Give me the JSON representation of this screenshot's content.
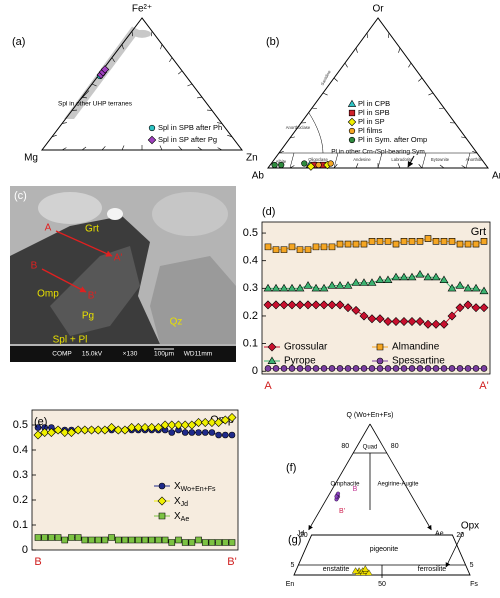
{
  "chart_data": [
    {
      "type": "ternary",
      "panel": "(a)",
      "vertices": [
        "Fe²⁺",
        "Mg",
        "Zn"
      ],
      "ticks": [
        0.1,
        0.2,
        0.3,
        0.4,
        0.5,
        0.6,
        0.7,
        0.8,
        0.9
      ],
      "annotations": [
        "Spl in other UHP terranes"
      ],
      "legend": "lower right",
      "series": [
        {
          "name": "Spl in SPB after Ph",
          "color": "#2ec4c4",
          "marker": "circle",
          "values": [
            [
              0.56,
              0.43,
              0.01
            ],
            [
              0.58,
              0.41,
              0.01
            ],
            [
              0.6,
              0.39,
              0.01
            ]
          ]
        },
        {
          "name": "Spl in SP after Pg",
          "color": "#a040c0",
          "marker": "diamond",
          "values": [
            [
              0.57,
              0.42,
              0.01
            ],
            [
              0.59,
              0.4,
              0.01
            ],
            [
              0.61,
              0.38,
              0.01
            ]
          ]
        }
      ]
    },
    {
      "type": "ternary",
      "panel": "(b)",
      "vertices": [
        "Or",
        "Ab",
        "An"
      ],
      "ticks": [
        0.1,
        0.2,
        0.3,
        0.4,
        0.5,
        0.6,
        0.7,
        0.8,
        0.9
      ],
      "fields": [
        "Sanidine",
        "Anorthoclase",
        "Albite",
        "Oligoclase",
        "Andesine",
        "Labradorite",
        "Bytownite",
        "Anorthite"
      ],
      "annotations": [
        "Pl in other Crn-/Spl-bearing Sym"
      ],
      "legend": "center",
      "series": [
        {
          "name": "Pl in CPB",
          "color": "#2ec4c4",
          "marker": "triangle",
          "values": [
            [
              0.02,
              0.8,
              0.18
            ]
          ]
        },
        {
          "name": "Pl in SPB",
          "color": "#d0202a",
          "marker": "square",
          "values": [
            [
              0.02,
              0.78,
              0.2
            ],
            [
              0.02,
              0.74,
              0.24
            ]
          ]
        },
        {
          "name": "Pl in SP",
          "color": "#f0f000",
          "marker": "diamond",
          "values": [
            [
              0.01,
              0.8,
              0.19
            ],
            [
              0.02,
              0.72,
              0.26
            ]
          ]
        },
        {
          "name": "Pl films",
          "color": "#f5a623",
          "marker": "circle",
          "values": [
            [
              0.02,
              0.76,
              0.22
            ],
            [
              0.03,
              0.7,
              0.27
            ]
          ]
        },
        {
          "name": "Pl in Sym. after Omp",
          "color": "#2e8b3e",
          "marker": "circle",
          "values": [
            [
              0.02,
              0.96,
              0.02
            ],
            [
              0.02,
              0.93,
              0.05
            ],
            [
              0.03,
              0.82,
              0.15
            ]
          ]
        }
      ]
    },
    {
      "type": "image",
      "panel": "(c)",
      "labels": [
        "A",
        "Grt",
        "B",
        "Omp",
        "B'",
        "A'",
        "Pg",
        "Qz",
        "Spl + Pl"
      ],
      "scale_bar": [
        "COMP",
        "15.0kV",
        "×130",
        "100μm",
        "WD11mm"
      ]
    },
    {
      "type": "line",
      "panel": "(d)",
      "title": "Grt",
      "categories": [
        "A",
        null,
        null,
        null,
        null,
        null,
        null,
        null,
        null,
        null,
        null,
        null,
        null,
        null,
        null,
        null,
        null,
        null,
        null,
        null,
        null,
        null,
        null,
        null,
        null,
        null,
        null,
        "A'"
      ],
      "ylim": [
        -0.01,
        0.54
      ],
      "yticks": [
        0,
        0.1,
        0.2,
        0.3,
        0.4,
        0.5
      ],
      "series": [
        {
          "name": "Grossular",
          "color": "#c8102e",
          "marker": "diamond",
          "values": [
            0.24,
            0.24,
            0.24,
            0.24,
            0.24,
            0.24,
            0.24,
            0.24,
            0.24,
            0.24,
            0.23,
            0.22,
            0.2,
            0.19,
            0.19,
            0.18,
            0.18,
            0.18,
            0.18,
            0.18,
            0.17,
            0.17,
            0.17,
            0.2,
            0.23,
            0.24,
            0.23,
            0.23
          ]
        },
        {
          "name": "Almandine",
          "color": "#f5a623",
          "marker": "square",
          "values": [
            0.45,
            0.44,
            0.44,
            0.45,
            0.44,
            0.44,
            0.45,
            0.45,
            0.45,
            0.46,
            0.46,
            0.46,
            0.46,
            0.47,
            0.47,
            0.47,
            0.46,
            0.47,
            0.47,
            0.47,
            0.48,
            0.47,
            0.47,
            0.47,
            0.46,
            0.46,
            0.46,
            0.47
          ]
        },
        {
          "name": "Pyrope",
          "color": "#3cb371",
          "marker": "triangle",
          "values": [
            0.3,
            0.3,
            0.3,
            0.3,
            0.3,
            0.31,
            0.3,
            0.3,
            0.31,
            0.31,
            0.31,
            0.32,
            0.32,
            0.32,
            0.33,
            0.33,
            0.34,
            0.34,
            0.34,
            0.35,
            0.34,
            0.34,
            0.33,
            0.3,
            0.31,
            0.3,
            0.3,
            0.29
          ]
        },
        {
          "name": "Spessartine",
          "color": "#7b3fa0",
          "marker": "circle",
          "values": [
            0.01,
            0.01,
            0.01,
            0.01,
            0.01,
            0.01,
            0.01,
            0.01,
            0.01,
            0.01,
            0.01,
            0.01,
            0.01,
            0.01,
            0.01,
            0.01,
            0.01,
            0.01,
            0.01,
            0.01,
            0.01,
            0.01,
            0.01,
            0.01,
            0.01,
            0.01,
            0.01,
            0.01
          ]
        }
      ]
    },
    {
      "type": "line",
      "panel": "(e)",
      "title": "Omp",
      "categories": [
        "B",
        null,
        null,
        null,
        null,
        null,
        null,
        null,
        null,
        null,
        null,
        null,
        null,
        null,
        null,
        null,
        null,
        null,
        null,
        null,
        null,
        null,
        null,
        null,
        null,
        null,
        null,
        null,
        null,
        "B'"
      ],
      "ylim": [
        0,
        0.56
      ],
      "yticks": [
        0,
        0.1,
        0.2,
        0.3,
        0.4,
        0.5
      ],
      "series": [
        {
          "name": "XWo+En+Fs",
          "color": "#1f2a8a",
          "marker": "circle",
          "values": [
            0.49,
            0.49,
            0.49,
            0.48,
            0.48,
            0.48,
            0.48,
            0.48,
            0.48,
            0.48,
            0.48,
            0.48,
            0.48,
            0.48,
            0.48,
            0.48,
            0.48,
            0.48,
            0.48,
            0.48,
            0.47,
            0.48,
            0.47,
            0.47,
            0.47,
            0.47,
            0.47,
            0.46,
            0.46,
            0.46
          ]
        },
        {
          "name": "XJd",
          "color": "#f0f000",
          "marker": "diamond",
          "values": [
            0.46,
            0.47,
            0.47,
            0.48,
            0.47,
            0.47,
            0.48,
            0.48,
            0.48,
            0.48,
            0.48,
            0.49,
            0.48,
            0.48,
            0.49,
            0.49,
            0.49,
            0.49,
            0.49,
            0.5,
            0.5,
            0.5,
            0.5,
            0.5,
            0.51,
            0.51,
            0.51,
            0.51,
            0.52,
            0.53
          ]
        },
        {
          "name": "XAe",
          "color": "#7cc242",
          "marker": "square",
          "values": [
            0.05,
            0.05,
            0.05,
            0.05,
            0.04,
            0.05,
            0.05,
            0.04,
            0.04,
            0.04,
            0.04,
            0.05,
            0.04,
            0.04,
            0.04,
            0.04,
            0.04,
            0.04,
            0.04,
            0.04,
            0.03,
            0.04,
            0.03,
            0.03,
            0.04,
            0.03,
            0.03,
            0.03,
            0.03,
            0.03
          ]
        }
      ]
    },
    {
      "type": "pyroxene-q",
      "panel": "(f)",
      "vertices": [
        "Q (Wo+En+Fs)",
        "Jd",
        "Ae"
      ],
      "ticks": [
        80
      ],
      "fields": [
        "Quad",
        "Omphacite",
        "Aegirine-Augite"
      ],
      "annotations": [
        "B",
        "B'"
      ],
      "series": [
        {
          "color": "#8a40c0",
          "marker": "circle",
          "values": [
            [
              50,
              44,
              6
            ],
            [
              51,
              44,
              5
            ],
            [
              49,
              45,
              6
            ],
            [
              52,
              43,
              5
            ],
            [
              48,
              46,
              6
            ],
            [
              50,
              45,
              5
            ]
          ]
        }
      ]
    },
    {
      "type": "quadrilateral",
      "panel": "(g)",
      "vertices": [
        "En",
        "Fs"
      ],
      "xticks": [
        50
      ],
      "yticks": [
        5,
        20
      ],
      "fields": [
        "enstatite",
        "pigeonite",
        "ferrosilite"
      ],
      "annotations": [
        "Opx"
      ],
      "series": [
        {
          "color": "#f0e000",
          "marker": "triangle",
          "values": [
            [
              2,
              62,
              36
            ],
            [
              1,
              63,
              36
            ],
            [
              2,
              60,
              38
            ],
            [
              1,
              60,
              39
            ],
            [
              2,
              58,
              40
            ],
            [
              1,
              57,
              42
            ],
            [
              2,
              64,
              34
            ],
            [
              3,
              58,
              39
            ]
          ]
        }
      ]
    }
  ]
}
